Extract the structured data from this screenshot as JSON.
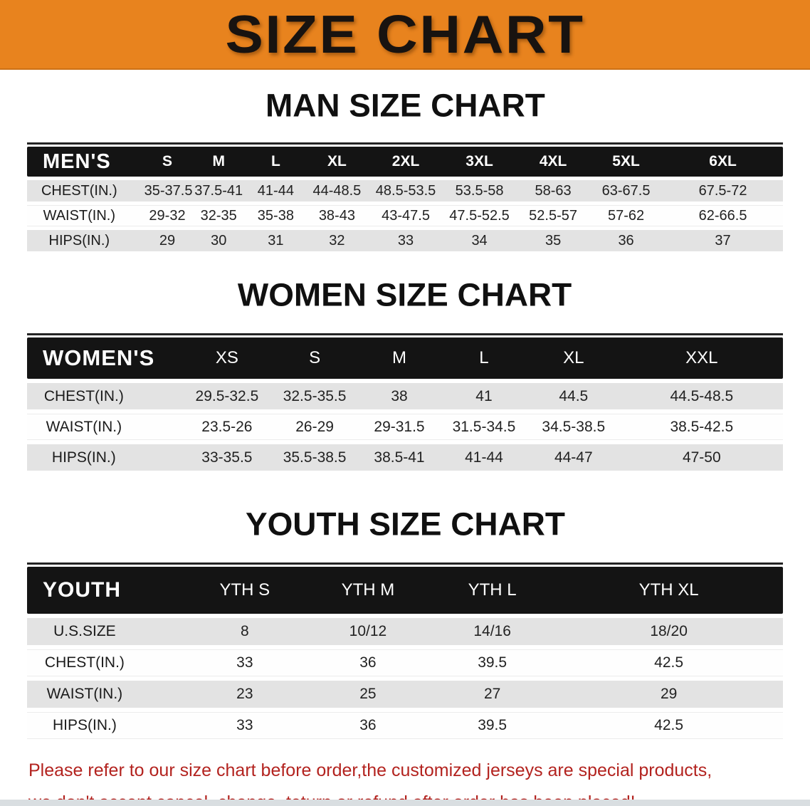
{
  "banner": {
    "title": "SIZE CHART"
  },
  "men": {
    "heading": "MAN SIZE CHART",
    "header": {
      "label": "MEN'S",
      "sizes": [
        "S",
        "M",
        "L",
        "XL",
        "2XL",
        "3XL",
        "4XL",
        "5XL",
        "6XL"
      ]
    },
    "rows": [
      {
        "label": "CHEST(IN.)",
        "values": [
          "35-37.5",
          "37.5-41",
          "41-44",
          "44-48.5",
          "48.5-53.5",
          "53.5-58",
          "58-63",
          "63-67.5",
          "67.5-72"
        ]
      },
      {
        "label": "WAIST(IN.)",
        "values": [
          "29-32",
          "32-35",
          "35-38",
          "38-43",
          "43-47.5",
          "47.5-52.5",
          "52.5-57",
          "57-62",
          "62-66.5"
        ]
      },
      {
        "label": "HIPS(IN.)",
        "values": [
          "29",
          "30",
          "31",
          "32",
          "33",
          "34",
          "35",
          "36",
          "37"
        ]
      }
    ]
  },
  "women": {
    "heading": "WOMEN SIZE CHART",
    "header": {
      "label": "WOMEN'S",
      "sizes": [
        "XS",
        "S",
        "M",
        "L",
        "XL",
        "XXL"
      ]
    },
    "rows": [
      {
        "label": "CHEST(IN.)",
        "values": [
          "29.5-32.5",
          "32.5-35.5",
          "38",
          "41",
          "44.5",
          "44.5-48.5"
        ]
      },
      {
        "label": "WAIST(IN.)",
        "values": [
          "23.5-26",
          "26-29",
          "29-31.5",
          "31.5-34.5",
          "34.5-38.5",
          "38.5-42.5"
        ]
      },
      {
        "label": "HIPS(IN.)",
        "values": [
          "33-35.5",
          "35.5-38.5",
          "38.5-41",
          "41-44",
          "44-47",
          "47-50"
        ]
      }
    ]
  },
  "youth": {
    "heading": "YOUTH SIZE CHART",
    "header": {
      "label": "YOUTH",
      "sizes": [
        "YTH S",
        "YTH M",
        "YTH L",
        "YTH XL"
      ]
    },
    "rows": [
      {
        "label": "U.S.SIZE",
        "values": [
          "8",
          "10/12",
          "14/16",
          "18/20"
        ]
      },
      {
        "label": "CHEST(IN.)",
        "values": [
          "33",
          "36",
          "39.5",
          "42.5"
        ]
      },
      {
        "label": "WAIST(IN.)",
        "values": [
          "23",
          "25",
          "27",
          "29"
        ]
      },
      {
        "label": "HIPS(IN.)",
        "values": [
          "33",
          "36",
          "39.5",
          "42.5"
        ]
      }
    ]
  },
  "note": {
    "line1": "Please refer to our size chart before order,the customized jerseys are special products,",
    "line2": "we don't accept cancel, change, teturn or refund after order has been placed!"
  },
  "colors": {
    "banner_bg": "#e8831e",
    "banner_text": "#181310",
    "table_header_bg": "#141414",
    "table_header_text": "#ffffff",
    "row_gray": "#e3e3e3",
    "row_white": "#fefefe",
    "note_text": "#b3231f",
    "bottom_strip": "#d9dee1"
  }
}
